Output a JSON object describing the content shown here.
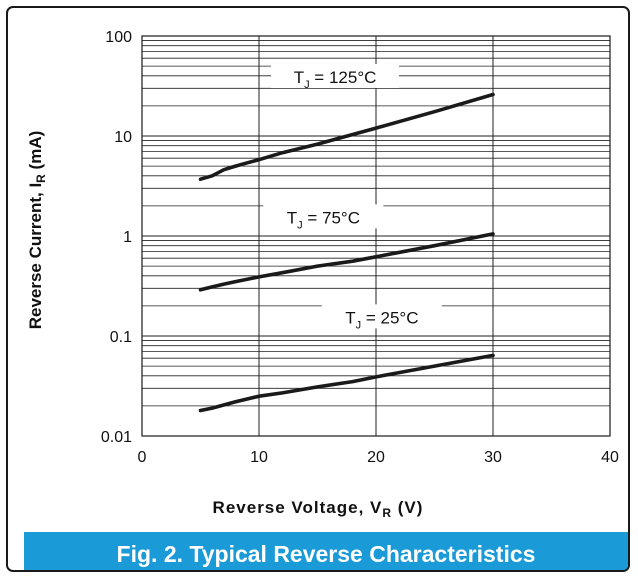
{
  "colors": {
    "caption_bg": "#1a9ad6",
    "curve": "#1a1a1a",
    "grid": "#222222",
    "frame": "#1a1a1a"
  },
  "caption": "Fig. 2.  Typical Reverse Characteristics",
  "chart_data": {
    "type": "line",
    "title": "",
    "xlabel": "Reverse Voltage, V_R (V)",
    "ylabel": "Reverse Current, I_R (mA)",
    "xlabel_parts": {
      "main": "Reverse Voltage, V",
      "sub": "R",
      "unit": " (V)"
    },
    "ylabel_parts": {
      "main": "Reverse Current, I",
      "sub": "R",
      "unit": " (mA)"
    },
    "xlim": [
      0,
      40
    ],
    "ylim": [
      0.01,
      100
    ],
    "yscale": "log",
    "grid": true,
    "x_ticks": [
      0,
      10,
      20,
      30,
      40
    ],
    "x_tick_labels": [
      "0",
      "10",
      "20",
      "30",
      "40"
    ],
    "y_ticks": [
      0.01,
      0.1,
      1,
      10,
      100
    ],
    "y_tick_labels": [
      "0.01",
      "0.1",
      "1",
      "10",
      "100"
    ],
    "series": [
      {
        "name": "T_J = 125°C",
        "label_parts": {
          "main": "T",
          "sub": "J",
          "rest": " = 125°C"
        },
        "x": [
          5,
          6,
          7,
          8,
          9,
          10,
          12,
          15,
          20,
          25,
          30
        ],
        "y": [
          3.7,
          4.0,
          4.6,
          5.0,
          5.4,
          5.8,
          6.8,
          8.3,
          12,
          17.5,
          26
        ]
      },
      {
        "name": "T_J = 75°C",
        "label_parts": {
          "main": "T",
          "sub": "J",
          "rest": " = 75°C"
        },
        "x": [
          5,
          6,
          7,
          8,
          10,
          12,
          15,
          18,
          20,
          25,
          30
        ],
        "y": [
          0.29,
          0.31,
          0.33,
          0.35,
          0.39,
          0.43,
          0.5,
          0.56,
          0.62,
          0.8,
          1.05
        ]
      },
      {
        "name": "T_J = 25°C",
        "label_parts": {
          "main": "T",
          "sub": "J",
          "rest": " = 25°C"
        },
        "x": [
          5,
          6,
          8,
          10,
          12,
          15,
          18,
          20,
          25,
          30
        ],
        "y": [
          0.018,
          0.019,
          0.022,
          0.025,
          0.027,
          0.031,
          0.035,
          0.039,
          0.05,
          0.064
        ]
      }
    ]
  }
}
